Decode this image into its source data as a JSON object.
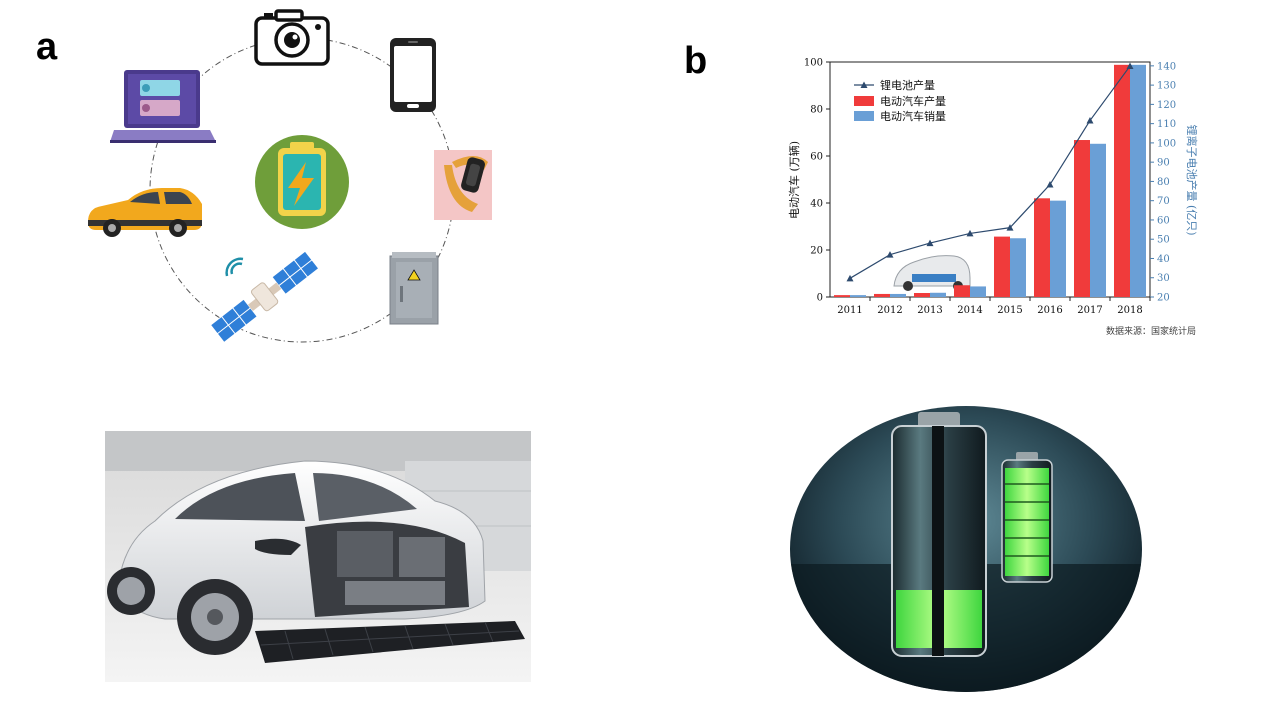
{
  "panel_a": {
    "label": "a",
    "icons": [
      "camera-icon",
      "smartphone-icon",
      "smartwatch-icon",
      "electrical-cabinet-icon",
      "satellite-icon",
      "car-icon",
      "laptop-icon",
      "battery-charging-icon"
    ]
  },
  "panel_b": {
    "label": "b",
    "source_note": "数据来源：国家统计局"
  },
  "colors": {
    "production_bar": "#f03b3b",
    "sales_bar": "#6a9fd6",
    "lithium_line": "#2d4a6e",
    "right_axis": "#4a7fb0"
  },
  "chart_data": {
    "type": "bar",
    "categories": [
      "2011",
      "2012",
      "2013",
      "2014",
      "2015",
      "2016",
      "2017",
      "2018"
    ],
    "series": [
      {
        "name": "电动汽车产量",
        "type": "bar",
        "axis": "left",
        "values": [
          0.8,
          1.3,
          1.7,
          5,
          25.7,
          42,
          66.8,
          98.8
        ]
      },
      {
        "name": "电动汽车销量",
        "type": "bar",
        "axis": "left",
        "values": [
          0.8,
          1.3,
          1.8,
          4.5,
          25,
          41,
          65.2,
          98.8
        ]
      },
      {
        "name": "锂电池产量",
        "type": "line",
        "axis": "right",
        "values": [
          29.7,
          42,
          48,
          53,
          56,
          78.4,
          111.6,
          139.9
        ]
      }
    ],
    "ylabel": "电动汽车 (万辆)",
    "ylabel_right": "锂离子电池产量 (亿只)",
    "ylim": [
      0,
      100
    ],
    "ylim_right": [
      20,
      142
    ],
    "yticks": [
      "0",
      "20",
      "40",
      "60",
      "80",
      "100"
    ],
    "yticks_right": [
      "20",
      "30",
      "40",
      "50",
      "60",
      "70",
      "80",
      "90",
      "100",
      "110",
      "120",
      "130",
      "140"
    ],
    "legend_position": "top-left",
    "grid": false
  }
}
